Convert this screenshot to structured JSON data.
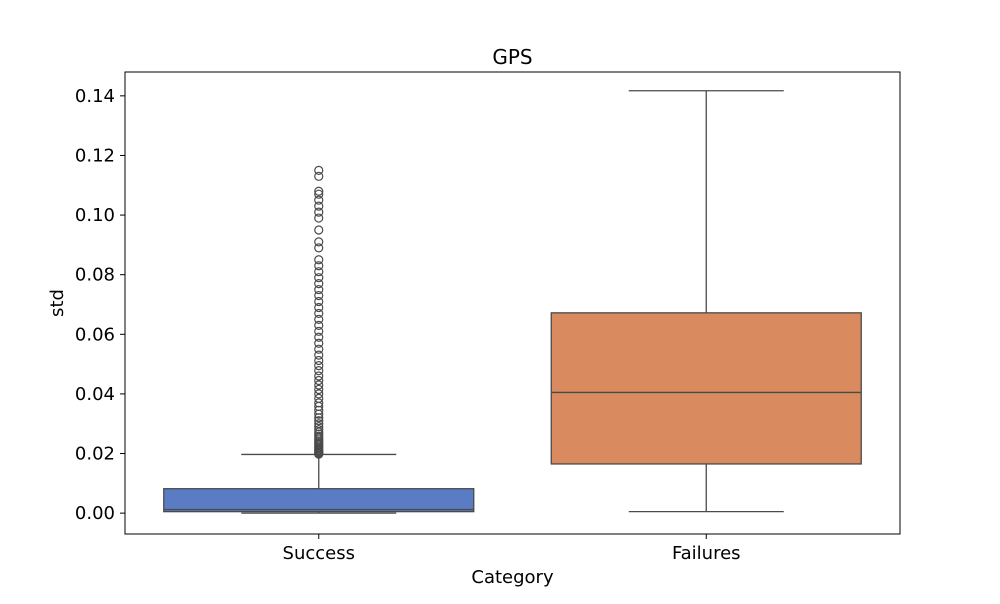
{
  "chart_data": {
    "type": "box",
    "title": "GPS",
    "xlabel": "Category",
    "ylabel": "std",
    "categories": [
      "Success",
      "Failures"
    ],
    "ylim": [
      -0.007,
      0.148
    ],
    "yticks": [
      0.0,
      0.02,
      0.04,
      0.06,
      0.08,
      0.1,
      0.12,
      0.14
    ],
    "ytick_labels": [
      "0.00",
      "0.02",
      "0.04",
      "0.06",
      "0.08",
      "0.10",
      "0.12",
      "0.14"
    ],
    "grid": false,
    "legend": "none",
    "boxes": [
      {
        "category": "Success",
        "color": "#5a7cc5",
        "whisker_low": 0.0,
        "q1": 0.0005,
        "median": 0.0012,
        "q3": 0.0082,
        "whisker_high": 0.0197,
        "outliers": [
          0.0198,
          0.0201,
          0.0204,
          0.0208,
          0.0212,
          0.0216,
          0.022,
          0.0225,
          0.023,
          0.0235,
          0.024,
          0.0246,
          0.0252,
          0.0258,
          0.0265,
          0.0272,
          0.028,
          0.029,
          0.03,
          0.031,
          0.032,
          0.0332,
          0.0345,
          0.0358,
          0.037,
          0.0385,
          0.04,
          0.0415,
          0.043,
          0.0445,
          0.046,
          0.0478,
          0.0495,
          0.0512,
          0.053,
          0.055,
          0.057,
          0.059,
          0.061,
          0.063,
          0.065,
          0.067,
          0.069,
          0.071,
          0.073,
          0.075,
          0.077,
          0.079,
          0.081,
          0.083,
          0.085,
          0.089,
          0.091,
          0.095,
          0.099,
          0.101,
          0.103,
          0.105,
          0.107,
          0.108,
          0.113,
          0.115
        ]
      },
      {
        "category": "Failures",
        "color": "#d98a5e",
        "whisker_low": 0.0005,
        "q1": 0.0165,
        "median": 0.0405,
        "q3": 0.0672,
        "whisker_high": 0.1417,
        "outliers": []
      }
    ]
  }
}
